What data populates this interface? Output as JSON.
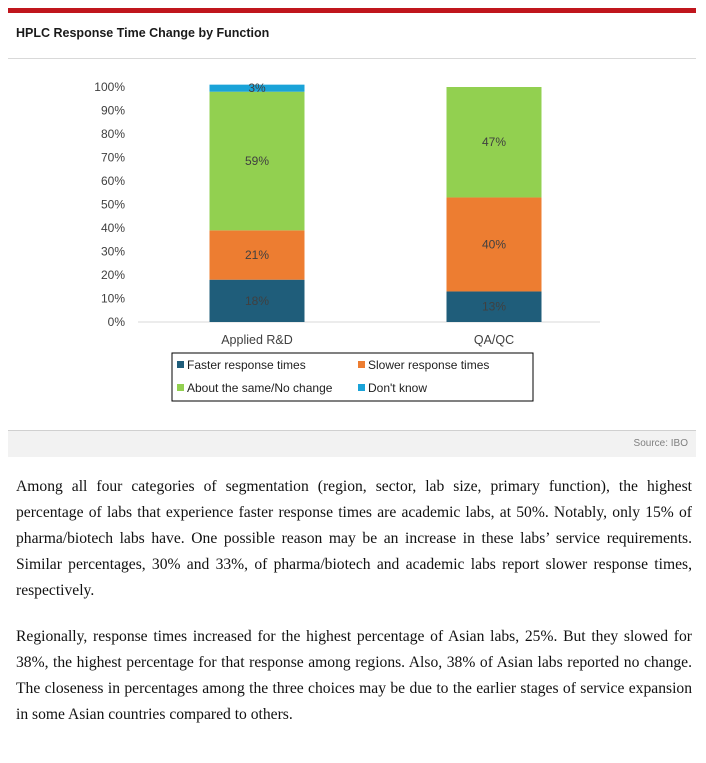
{
  "figure": {
    "title": "HPLC Response Time Change by Function",
    "source": "Source: IBO"
  },
  "colors": {
    "faster": "#1f5d7a",
    "slower": "#ed7d31",
    "same": "#92d050",
    "dont_know": "#1aa3d8",
    "accent_rule": "#c0161d"
  },
  "chart_data": {
    "type": "bar",
    "stacked": true,
    "title": "HPLC Response Time Change by Function",
    "categories": [
      "Applied R&D",
      "QA/QC"
    ],
    "series": [
      {
        "name": "Faster response times",
        "key": "faster",
        "values": [
          18,
          13
        ],
        "labels": [
          "18%",
          "13%"
        ]
      },
      {
        "name": "Slower response times",
        "key": "slower",
        "values": [
          21,
          40
        ],
        "labels": [
          "21%",
          "40%"
        ]
      },
      {
        "name": "About the same/No change",
        "key": "same",
        "values": [
          59,
          47
        ],
        "labels": [
          "59%",
          "47%"
        ]
      },
      {
        "name": "Don't know",
        "key": "dont_know",
        "values": [
          3,
          0
        ],
        "labels": [
          "3%",
          ""
        ]
      }
    ],
    "ylim": [
      0,
      100
    ],
    "yticks": [
      "0%",
      "10%",
      "20%",
      "30%",
      "40%",
      "50%",
      "60%",
      "70%",
      "80%",
      "90%",
      "100%"
    ],
    "xlabel": "",
    "ylabel": "",
    "grid": false,
    "legend_position": "bottom"
  },
  "body": {
    "paragraph1": "Among all four categories of segmentation (region, sector, lab size, primary function), the highest percentage of labs that experience faster response times are academic labs, at 50%. Notably, only 15% of pharma/biotech labs have. One possible reason may be an increase in these labs’ service requirements. Similar percentages, 30% and 33%, of pharma/biotech and academic labs report slower response times, respectively.",
    "paragraph2": "Regionally, response times increased for the highest percentage of Asian labs, 25%. But they slowed for 38%, the highest percentage for that response among regions. Also, 38% of Asian labs reported no change. The closeness in percentages among the three choices may be due to the earlier stages of service expansion in some Asian countries compared to others."
  }
}
